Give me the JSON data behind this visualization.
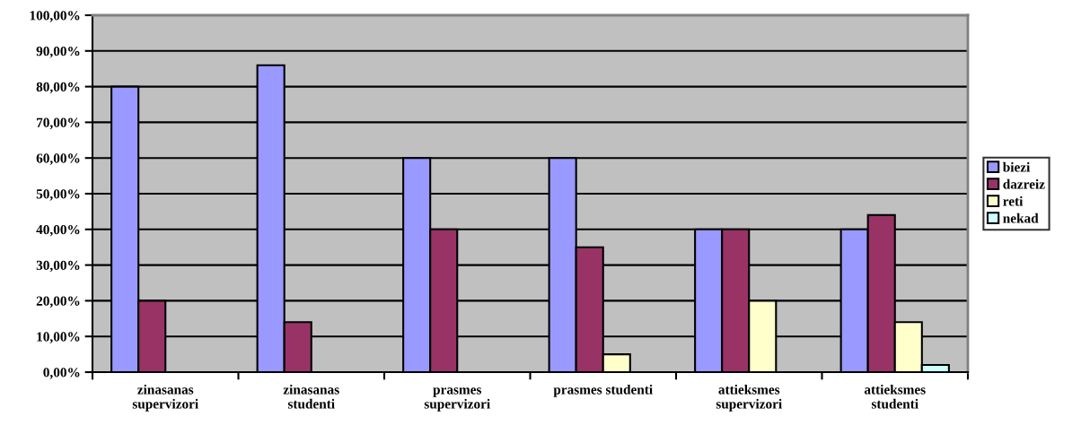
{
  "chart_data": {
    "type": "bar",
    "categories": [
      "zinasanas\nsupervizori",
      "zinasanas\nstudenti",
      "prasmes\nsupervizori",
      "prasmes studenti",
      "attieksmes\nsupervizori",
      "attieksmes\nstudenti"
    ],
    "series": [
      {
        "name": "biezi",
        "color": "#9999ff",
        "values": [
          80,
          86,
          60,
          60,
          40,
          40
        ]
      },
      {
        "name": "dazreiz",
        "color": "#993366",
        "values": [
          20,
          14,
          40,
          35,
          40,
          44
        ]
      },
      {
        "name": "reti",
        "color": "#ffffcc",
        "values": [
          null,
          null,
          null,
          5,
          20,
          14
        ]
      },
      {
        "name": "nekad",
        "color": "#ccffff",
        "values": [
          null,
          null,
          null,
          null,
          null,
          2
        ]
      }
    ],
    "ylim": [
      0,
      100
    ],
    "yticks": [
      {
        "value": 0,
        "label": "0,00%"
      },
      {
        "value": 10,
        "label": "10,00%"
      },
      {
        "value": 20,
        "label": "20,00%"
      },
      {
        "value": 30,
        "label": "30,00%"
      },
      {
        "value": 40,
        "label": "40,00%"
      },
      {
        "value": 50,
        "label": "50,00%"
      },
      {
        "value": 60,
        "label": "60,00%"
      },
      {
        "value": 70,
        "label": "70,00%"
      },
      {
        "value": 80,
        "label": "80,00%"
      },
      {
        "value": 90,
        "label": "90,00%"
      },
      {
        "value": 100,
        "label": "100,00%"
      }
    ],
    "grid": "y",
    "legend": "right"
  }
}
